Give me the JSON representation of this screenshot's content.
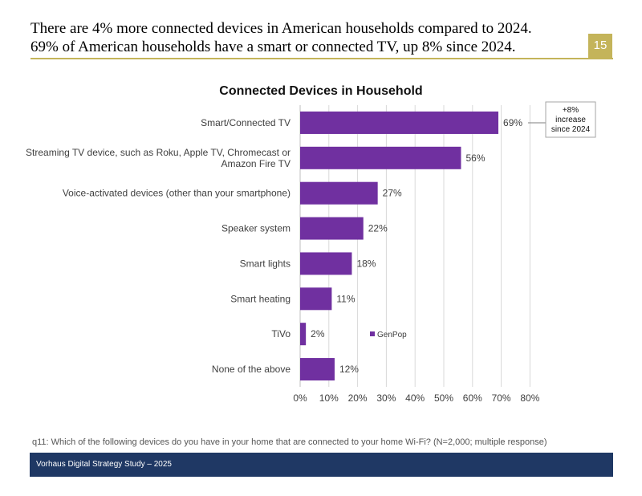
{
  "headline": {
    "line1": "There are 4% more connected devices in American households compared to 2024.",
    "line2": "69% of American households have a smart or connected TV, up 8% since 2024."
  },
  "page_number": "15",
  "colors": {
    "accent_gold": "#c4b45a",
    "bar": "#7030a0",
    "footer_navy": "#1f3864"
  },
  "chart_data": {
    "type": "bar",
    "orientation": "horizontal",
    "title": "Connected Devices in Household",
    "categories": [
      [
        "Smart/Connected TV"
      ],
      [
        "Streaming TV device, such as Roku, Apple TV, Chromecast or",
        "Amazon Fire TV"
      ],
      [
        "Voice-activated devices (other than your smartphone)"
      ],
      [
        "Speaker system"
      ],
      [
        "Smart lights"
      ],
      [
        "Smart heating"
      ],
      [
        "TiVo"
      ],
      [
        "None of the above"
      ]
    ],
    "series": [
      {
        "name": "GenPop",
        "values": [
          69,
          56,
          27,
          22,
          18,
          11,
          2,
          12
        ]
      }
    ],
    "value_labels": [
      "69%",
      "56%",
      "27%",
      "22%",
      "18%",
      "11%",
      "2%",
      "12%"
    ],
    "xlim": [
      0,
      80
    ],
    "x_ticks": [
      "0%",
      "10%",
      "20%",
      "30%",
      "40%",
      "50%",
      "60%",
      "70%",
      "80%"
    ],
    "grid": "vertical",
    "legend_placement": "inside-right",
    "annotation": [
      "+8%",
      "increase",
      "since 2024"
    ]
  },
  "footnote": "q11: Which of the following devices do you have in your home that are connected to your home Wi-Fi? (N=2,000; multiple response)",
  "footer": "Vorhaus Digital Strategy Study – 2025"
}
